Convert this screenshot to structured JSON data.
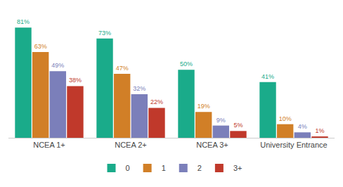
{
  "chart_data": {
    "type": "bar",
    "categories": [
      "NCEA 1+",
      "NCEA 2+",
      "NCEA 3+",
      "University Entrance"
    ],
    "series": [
      {
        "name": "0",
        "color": "#1aab8a",
        "values": [
          81,
          73,
          50,
          41
        ],
        "value_labels": [
          "81%",
          "73%",
          "50%",
          "41%"
        ]
      },
      {
        "name": "1",
        "color": "#d17f27",
        "values": [
          63,
          47,
          19,
          10
        ],
        "value_labels": [
          "63%",
          "47%",
          "19%",
          "10%"
        ]
      },
      {
        "name": "2",
        "color": "#7b7fba",
        "values": [
          49,
          32,
          9,
          4
        ],
        "value_labels": [
          "49%",
          "32%",
          "9%",
          "4%"
        ]
      },
      {
        "name": "3+",
        "color": "#c0392b",
        "values": [
          38,
          22,
          5,
          1
        ],
        "value_labels": [
          "38%",
          "22%",
          "5%",
          "1%"
        ]
      }
    ],
    "ylim": [
      0,
      92
    ],
    "grid": false,
    "legend": "bottom",
    "data_labels": true,
    "tick_labels": "x"
  }
}
